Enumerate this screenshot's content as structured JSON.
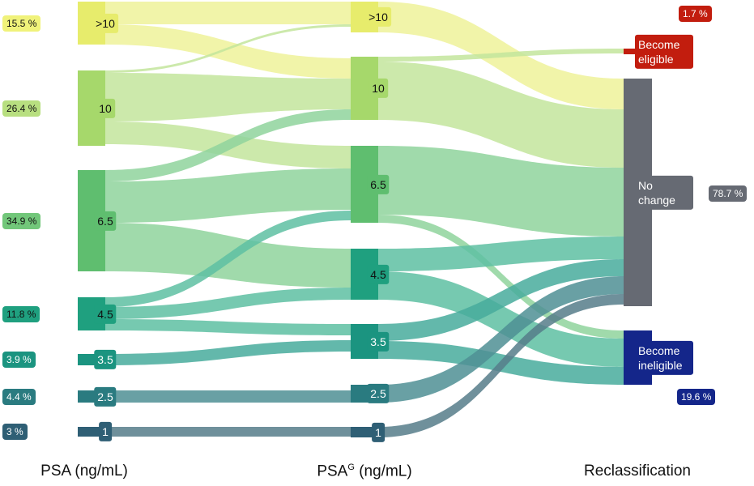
{
  "columns": [
    {
      "title": "PSA (ng/mL)",
      "nodes": [
        {
          "label": ">10",
          "share": "15.5 %"
        },
        {
          "label": "10",
          "share": "26.4 %"
        },
        {
          "label": "6.5",
          "share": "34.9 %"
        },
        {
          "label": "4.5",
          "share": "11.8 %"
        },
        {
          "label": "3.5",
          "share": "3.9 %"
        },
        {
          "label": "2.5",
          "share": "4.4 %"
        },
        {
          "label": "1",
          "share": "3 %"
        }
      ]
    },
    {
      "title": "PSA",
      "title_sup": "G",
      "title_unit": "(ng/mL)",
      "nodes": [
        {
          "label": ">10"
        },
        {
          "label": "10"
        },
        {
          "label": "6.5"
        },
        {
          "label": "4.5"
        },
        {
          "label": "3.5"
        },
        {
          "label": "2.5"
        },
        {
          "label": "1"
        }
      ]
    },
    {
      "title": "Reclassification",
      "nodes": [
        {
          "label": "Become eligible",
          "share": "1.7 %"
        },
        {
          "label": "No change",
          "share": "78.7 %"
        },
        {
          "label": "Become ineligible",
          "share": "19.6 %"
        }
      ]
    }
  ]
}
